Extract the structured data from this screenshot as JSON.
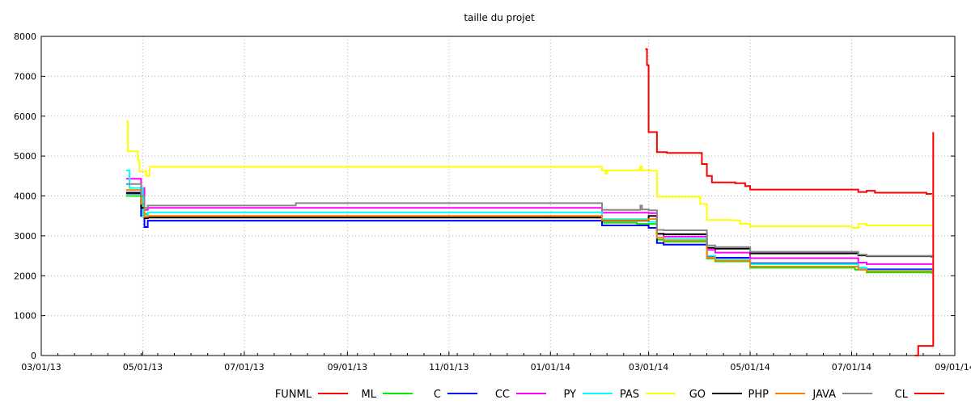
{
  "chart_data": {
    "type": "line",
    "title": "taille du projet",
    "xlabel": "",
    "ylabel": "",
    "ylim": [
      0,
      8000
    ],
    "yticks": [
      0,
      1000,
      2000,
      3000,
      4000,
      5000,
      6000,
      7000,
      8000
    ],
    "xlim": [
      "2013-03-01",
      "2014-09-01"
    ],
    "xticks": [
      {
        "date": "2013-03-01",
        "label": "03/01/13"
      },
      {
        "date": "2013-05-01",
        "label": "05/01/13"
      },
      {
        "date": "2013-07-01",
        "label": "07/01/13"
      },
      {
        "date": "2013-09-01",
        "label": "09/01/13"
      },
      {
        "date": "2013-11-01",
        "label": "11/01/13"
      },
      {
        "date": "2014-01-01",
        "label": "01/01/14"
      },
      {
        "date": "2014-03-01",
        "label": "03/01/14"
      },
      {
        "date": "2014-05-01",
        "label": "05/01/14"
      },
      {
        "date": "2014-07-01",
        "label": "07/01/14"
      },
      {
        "date": "2014-09-01",
        "label": "09/01/14"
      }
    ],
    "grid": true,
    "legend_position": "bottom",
    "series": [
      {
        "name": "FUNML",
        "color": "#ff0000",
        "points": [
          [
            "2014-02-27",
            7680
          ],
          [
            "2014-02-28",
            7280
          ],
          [
            "2014-03-01",
            5600
          ],
          [
            "2014-03-06",
            5100
          ],
          [
            "2014-03-12",
            5080
          ],
          [
            "2014-04-01",
            5080
          ],
          [
            "2014-04-02",
            4800
          ],
          [
            "2014-04-05",
            4500
          ],
          [
            "2014-04-08",
            4340
          ],
          [
            "2014-04-22",
            4320
          ],
          [
            "2014-04-28",
            4250
          ],
          [
            "2014-05-01",
            4160
          ],
          [
            "2014-07-01",
            4160
          ],
          [
            "2014-07-05",
            4100
          ],
          [
            "2014-07-10",
            4130
          ],
          [
            "2014-07-15",
            4080
          ],
          [
            "2014-08-10",
            4080
          ],
          [
            "2014-08-15",
            4050
          ],
          [
            "2014-08-18",
            4040
          ]
        ]
      },
      {
        "name": "ML",
        "color": "#00ee00",
        "points": [
          [
            "2013-04-21",
            4000
          ],
          [
            "2013-04-30",
            3800
          ],
          [
            "2013-05-01",
            3550
          ],
          [
            "2013-05-04",
            3480
          ],
          [
            "2014-01-25",
            3480
          ],
          [
            "2014-02-01",
            3330
          ],
          [
            "2014-02-15",
            3330
          ],
          [
            "2014-02-22",
            3300
          ],
          [
            "2014-03-01",
            3300
          ],
          [
            "2014-03-06",
            2900
          ],
          [
            "2014-03-10",
            2850
          ],
          [
            "2014-03-31",
            2850
          ],
          [
            "2014-04-05",
            2430
          ],
          [
            "2014-04-10",
            2360
          ],
          [
            "2014-04-22",
            2360
          ],
          [
            "2014-05-01",
            2200
          ],
          [
            "2014-07-01",
            2200
          ],
          [
            "2014-07-03",
            2150
          ],
          [
            "2014-07-10",
            2080
          ],
          [
            "2014-08-18",
            2050
          ]
        ]
      },
      {
        "name": "C",
        "color": "#0000ff",
        "points": [
          [
            "2013-04-21",
            4060
          ],
          [
            "2013-04-30",
            3500
          ],
          [
            "2013-05-02",
            3220
          ],
          [
            "2013-05-04",
            3380
          ],
          [
            "2014-01-25",
            3380
          ],
          [
            "2014-02-01",
            3260
          ],
          [
            "2014-02-22",
            3260
          ],
          [
            "2014-03-01",
            3200
          ],
          [
            "2014-03-06",
            2820
          ],
          [
            "2014-03-10",
            2780
          ],
          [
            "2014-03-31",
            2780
          ],
          [
            "2014-04-05",
            2480
          ],
          [
            "2014-04-10",
            2450
          ],
          [
            "2014-04-22",
            2450
          ],
          [
            "2014-05-01",
            2310
          ],
          [
            "2014-07-01",
            2310
          ],
          [
            "2014-07-05",
            2200
          ],
          [
            "2014-07-10",
            2160
          ],
          [
            "2014-08-18",
            2150
          ]
        ]
      },
      {
        "name": "CC",
        "color": "#ff00ff",
        "points": [
          [
            "2013-04-21",
            4430
          ],
          [
            "2013-04-30",
            4200
          ],
          [
            "2013-05-02",
            3650
          ],
          [
            "2013-05-04",
            3700
          ],
          [
            "2014-01-25",
            3700
          ],
          [
            "2014-02-01",
            3580
          ],
          [
            "2014-02-22",
            3580
          ],
          [
            "2014-03-01",
            3570
          ],
          [
            "2014-03-06",
            3050
          ],
          [
            "2014-03-10",
            2980
          ],
          [
            "2014-03-31",
            2980
          ],
          [
            "2014-04-05",
            2650
          ],
          [
            "2014-04-10",
            2580
          ],
          [
            "2014-04-22",
            2580
          ],
          [
            "2014-05-01",
            2440
          ],
          [
            "2014-07-01",
            2440
          ],
          [
            "2014-07-05",
            2330
          ],
          [
            "2014-07-10",
            2290
          ],
          [
            "2014-08-18",
            2270
          ]
        ]
      },
      {
        "name": "PY",
        "color": "#00ffff",
        "points": [
          [
            "2013-04-21",
            4640
          ],
          [
            "2013-04-23",
            4200
          ],
          [
            "2013-05-01",
            3500
          ],
          [
            "2013-05-04",
            3590
          ],
          [
            "2014-01-25",
            3590
          ],
          [
            "2014-02-01",
            3420
          ],
          [
            "2014-02-22",
            3420
          ],
          [
            "2014-03-01",
            3350
          ],
          [
            "2014-03-06",
            2950
          ],
          [
            "2014-03-10",
            2920
          ],
          [
            "2014-03-31",
            2920
          ],
          [
            "2014-04-05",
            2500
          ],
          [
            "2014-04-10",
            2400
          ],
          [
            "2014-04-22",
            2400
          ],
          [
            "2014-05-01",
            2290
          ],
          [
            "2014-07-01",
            2290
          ],
          [
            "2014-07-05",
            2200
          ],
          [
            "2014-07-10",
            2130
          ],
          [
            "2014-08-18",
            2120
          ]
        ]
      },
      {
        "name": "PAS",
        "color": "#ffff00",
        "points": [
          [
            "2013-04-21",
            5870
          ],
          [
            "2013-04-22",
            5120
          ],
          [
            "2013-04-28",
            4900
          ],
          [
            "2013-04-29",
            4620
          ],
          [
            "2013-05-03",
            4500
          ],
          [
            "2013-05-05",
            4730
          ],
          [
            "2014-01-25",
            4730
          ],
          [
            "2014-02-01",
            4640
          ],
          [
            "2014-02-03",
            4560
          ],
          [
            "2014-02-04",
            4640
          ],
          [
            "2014-02-22",
            4650
          ],
          [
            "2014-02-24",
            4740
          ],
          [
            "2014-02-25",
            4640
          ],
          [
            "2014-03-02",
            4630
          ],
          [
            "2014-03-06",
            3980
          ],
          [
            "2014-03-31",
            3980
          ],
          [
            "2014-04-01",
            3800
          ],
          [
            "2014-04-05",
            3400
          ],
          [
            "2014-04-20",
            3390
          ],
          [
            "2014-04-25",
            3300
          ],
          [
            "2014-05-01",
            3240
          ],
          [
            "2014-06-28",
            3240
          ],
          [
            "2014-07-01",
            3200
          ],
          [
            "2014-07-05",
            3300
          ],
          [
            "2014-07-10",
            3260
          ],
          [
            "2014-08-18",
            3240
          ]
        ]
      },
      {
        "name": "GO",
        "color": "#000000",
        "points": [
          [
            "2013-04-21",
            4080
          ],
          [
            "2013-04-30",
            3700
          ],
          [
            "2013-05-02",
            3440
          ],
          [
            "2013-05-04",
            3460
          ],
          [
            "2014-01-25",
            3460
          ],
          [
            "2014-02-01",
            3380
          ],
          [
            "2014-02-22",
            3380
          ],
          [
            "2014-03-01",
            3500
          ],
          [
            "2014-03-06",
            3050
          ],
          [
            "2014-03-10",
            3040
          ],
          [
            "2014-03-31",
            3040
          ],
          [
            "2014-04-05",
            2700
          ],
          [
            "2014-04-10",
            2680
          ],
          [
            "2014-04-22",
            2680
          ],
          [
            "2014-05-01",
            2560
          ],
          [
            "2014-07-01",
            2560
          ],
          [
            "2014-07-05",
            2510
          ],
          [
            "2014-07-10",
            2490
          ],
          [
            "2014-08-18",
            2460
          ]
        ]
      },
      {
        "name": "PHP",
        "color": "#ff7f00",
        "points": [
          [
            "2013-04-21",
            4150
          ],
          [
            "2013-04-30",
            3800
          ],
          [
            "2013-05-02",
            3480
          ],
          [
            "2013-05-04",
            3500
          ],
          [
            "2014-01-25",
            3500
          ],
          [
            "2014-02-01",
            3390
          ],
          [
            "2014-02-22",
            3390
          ],
          [
            "2014-03-01",
            3420
          ],
          [
            "2014-03-06",
            2950
          ],
          [
            "2014-03-10",
            2880
          ],
          [
            "2014-03-31",
            2880
          ],
          [
            "2014-04-05",
            2450
          ],
          [
            "2014-04-10",
            2380
          ],
          [
            "2014-04-22",
            2380
          ],
          [
            "2014-05-01",
            2230
          ],
          [
            "2014-07-01",
            2230
          ],
          [
            "2014-07-05",
            2150
          ],
          [
            "2014-07-10",
            2110
          ],
          [
            "2014-08-18",
            2100
          ]
        ]
      },
      {
        "name": "JAVA",
        "color": "#888888",
        "points": [
          [
            "2013-04-21",
            4300
          ],
          [
            "2013-04-30",
            4000
          ],
          [
            "2013-05-02",
            3700
          ],
          [
            "2013-05-04",
            3760
          ],
          [
            "2013-08-01",
            3820
          ],
          [
            "2014-01-25",
            3820
          ],
          [
            "2014-02-01",
            3650
          ],
          [
            "2014-02-22",
            3650
          ],
          [
            "2014-02-24",
            3760
          ],
          [
            "2014-02-25",
            3660
          ],
          [
            "2014-03-01",
            3640
          ],
          [
            "2014-03-06",
            3150
          ],
          [
            "2014-03-10",
            3140
          ],
          [
            "2014-03-31",
            3140
          ],
          [
            "2014-04-05",
            2760
          ],
          [
            "2014-04-10",
            2720
          ],
          [
            "2014-04-22",
            2720
          ],
          [
            "2014-05-01",
            2600
          ],
          [
            "2014-07-01",
            2600
          ],
          [
            "2014-07-05",
            2530
          ],
          [
            "2014-07-10",
            2500
          ],
          [
            "2014-08-18",
            2480
          ]
        ]
      },
      {
        "name": "CL",
        "color": "#ff0000",
        "points": [
          [
            "2014-08-08",
            0
          ],
          [
            "2014-08-10",
            240
          ],
          [
            "2014-08-18",
            240
          ],
          [
            "2014-08-19",
            5600
          ]
        ]
      }
    ]
  }
}
